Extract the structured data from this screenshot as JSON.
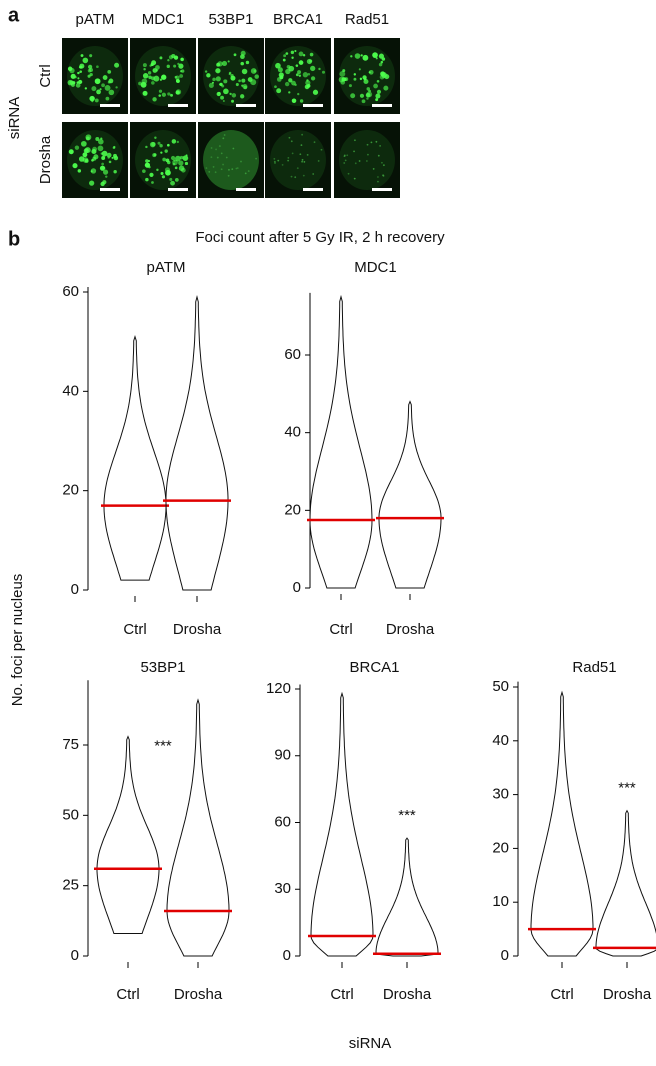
{
  "panel_labels": [
    "a",
    "b"
  ],
  "micrographs": {
    "columns": [
      "pATM",
      "MDC1",
      "53BP1",
      "BRCA1",
      "Rad51"
    ],
    "rows": [
      "Ctrl",
      "Drosha"
    ],
    "row_group": "siRNA"
  },
  "figure_title": "Foci count after 5 Gy IR, 2 h recovery",
  "y_label": "No. foci per nucleus",
  "x_label": "siRNA",
  "chart_data": [
    {
      "type": "violin",
      "title": "pATM",
      "categories": [
        "Ctrl",
        "Drosha"
      ],
      "min": [
        2,
        0
      ],
      "median": [
        17,
        18
      ],
      "max": [
        51,
        59
      ],
      "median_color": "#e00000",
      "ylim": [
        0,
        61
      ],
      "yticks": [
        0,
        20,
        40,
        60
      ]
    },
    {
      "type": "violin",
      "title": "MDC1",
      "categories": [
        "Ctrl",
        "Drosha"
      ],
      "min": [
        0,
        0
      ],
      "median": [
        17.5,
        18
      ],
      "max": [
        75,
        48
      ],
      "median_color": "#e00000",
      "ylim": [
        0,
        76
      ],
      "yticks": [
        0,
        20,
        40,
        60
      ]
    },
    {
      "type": "violin",
      "title": "53BP1",
      "categories": [
        "Ctrl",
        "Drosha"
      ],
      "min": [
        8,
        0
      ],
      "median": [
        31,
        16
      ],
      "max": [
        78,
        91
      ],
      "median_color": "#e00000",
      "ylim": [
        0,
        98
      ],
      "yticks": [
        0,
        25,
        50,
        75
      ],
      "annotation": "***"
    },
    {
      "type": "violin",
      "title": "BRCA1",
      "categories": [
        "Ctrl",
        "Drosha"
      ],
      "min": [
        0,
        0
      ],
      "median": [
        9,
        1
      ],
      "max": [
        118,
        53
      ],
      "median_color": "#e00000",
      "ylim": [
        0,
        122
      ],
      "yticks": [
        0,
        30,
        60,
        90,
        120
      ],
      "annotation": "***"
    },
    {
      "type": "violin",
      "title": "Rad51",
      "categories": [
        "Ctrl",
        "Drosha"
      ],
      "min": [
        0,
        0
      ],
      "median": [
        5,
        1.5
      ],
      "max": [
        49,
        27
      ],
      "median_color": "#e00000",
      "ylim": [
        0,
        51
      ],
      "yticks": [
        0,
        10,
        20,
        30,
        40,
        50
      ],
      "annotation": "***"
    }
  ]
}
